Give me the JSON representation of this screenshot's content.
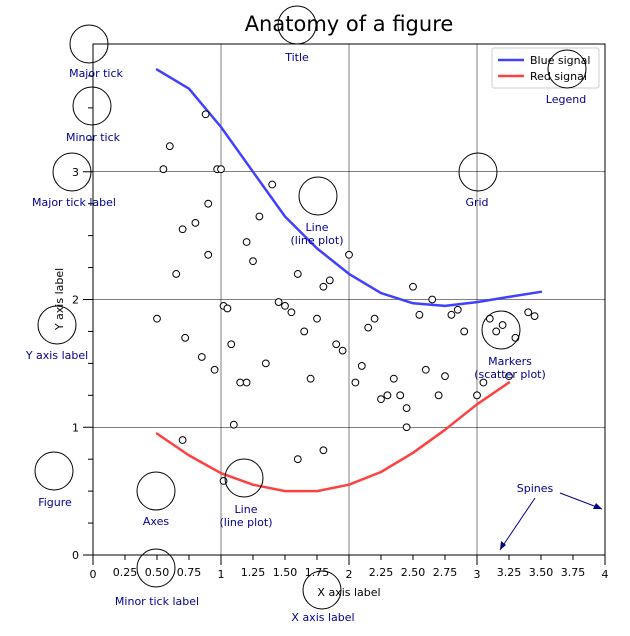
{
  "chart_data": {
    "type": "line+scatter",
    "title": "Anatomy of a figure",
    "xlabel": "X axis label",
    "ylabel": "Y axis label",
    "xlim": [
      0,
      4
    ],
    "ylim": [
      0,
      4
    ],
    "x_major_ticks": [
      0,
      1,
      2,
      3,
      4
    ],
    "x_major_labels": [
      "0",
      "1",
      "2",
      "3",
      "4"
    ],
    "x_minor_ticks": [
      0.25,
      0.5,
      0.75,
      1.25,
      1.5,
      1.75,
      2.25,
      2.5,
      2.75,
      3.25,
      3.5,
      3.75
    ],
    "x_minor_labels": [
      "0.25",
      "0.50",
      "0.75",
      "1.25",
      "1.50",
      "1.75",
      "2.25",
      "2.50",
      "2.75",
      "3.25",
      "3.50",
      "3.75"
    ],
    "y_major_ticks": [
      0,
      1,
      2,
      3
    ],
    "y_major_labels": [
      "0",
      "1",
      "2",
      "3"
    ],
    "y_minor_ticks": [
      0.25,
      0.5,
      0.75,
      1.25,
      1.5,
      1.75,
      2.25,
      2.5,
      2.75,
      3.25,
      3.5,
      3.75
    ],
    "grid": true,
    "legend_position": "top-right",
    "series": [
      {
        "name": "Blue signal",
        "kind": "line",
        "color": "#4040ff",
        "x": [
          0.5,
          0.75,
          1.0,
          1.25,
          1.5,
          1.75,
          2.0,
          2.25,
          2.5,
          2.75,
          3.0,
          3.25,
          3.5
        ],
        "y": [
          3.8,
          3.65,
          3.35,
          3.0,
          2.65,
          2.4,
          2.2,
          2.05,
          1.97,
          1.95,
          1.98,
          2.02,
          2.06
        ]
      },
      {
        "name": "Red signal",
        "kind": "line",
        "color": "#ff4040",
        "x": [
          0.5,
          0.75,
          1.0,
          1.25,
          1.5,
          1.75,
          2.0,
          2.25,
          2.5,
          2.75,
          3.0,
          3.25
        ],
        "y": [
          0.95,
          0.78,
          0.64,
          0.55,
          0.5,
          0.5,
          0.55,
          0.65,
          0.8,
          0.98,
          1.18,
          1.35
        ]
      },
      {
        "name": "",
        "kind": "scatter",
        "marker": "o",
        "x": [
          0.5,
          0.55,
          0.6,
          0.65,
          0.7,
          0.72,
          0.8,
          0.85,
          0.88,
          0.9,
          0.95,
          0.97,
          1.0,
          1.02,
          1.05,
          1.08,
          1.1,
          1.15,
          1.2,
          1.25,
          1.3,
          1.35,
          1.4,
          1.45,
          1.5,
          1.55,
          1.6,
          1.65,
          1.7,
          1.75,
          1.8,
          1.85,
          1.9,
          1.95,
          2.0,
          2.05,
          2.1,
          2.15,
          2.2,
          2.25,
          2.3,
          2.35,
          2.4,
          2.45,
          2.5,
          2.55,
          2.6,
          2.65,
          2.7,
          2.75,
          2.8,
          2.85,
          2.9,
          3.0,
          3.05,
          3.1,
          3.15,
          3.2,
          3.3,
          3.4,
          3.45,
          0.9,
          1.2,
          1.6,
          0.7,
          1.8,
          2.45,
          3.25,
          1.02
        ],
        "y": [
          1.85,
          3.02,
          3.2,
          2.2,
          2.55,
          1.7,
          2.6,
          1.55,
          3.45,
          2.35,
          1.45,
          3.02,
          3.02,
          1.95,
          1.93,
          1.65,
          1.02,
          1.35,
          2.45,
          2.3,
          2.65,
          1.5,
          2.9,
          1.98,
          1.95,
          1.9,
          2.2,
          1.75,
          1.38,
          1.85,
          2.1,
          2.15,
          1.65,
          1.6,
          2.35,
          1.35,
          1.48,
          1.78,
          1.85,
          1.22,
          1.25,
          1.38,
          1.25,
          1.15,
          2.1,
          1.88,
          1.45,
          2.0,
          1.25,
          1.4,
          1.88,
          1.92,
          1.75,
          1.25,
          1.35,
          1.85,
          1.75,
          1.8,
          1.7,
          1.9,
          1.87,
          2.75,
          1.35,
          0.75,
          0.9,
          0.82,
          1.0,
          1.4,
          0.58
        ]
      }
    ],
    "annotations": [
      "Major tick",
      "Minor tick",
      "Major tick label",
      "Title",
      "Legend",
      "Grid",
      "Line\n(line plot)",
      "Y axis label",
      "Markers\n(scatter plot)",
      "Figure",
      "Axes",
      "Line\n(line plot)",
      "Spines",
      "Minor tick label",
      "X axis label"
    ]
  }
}
